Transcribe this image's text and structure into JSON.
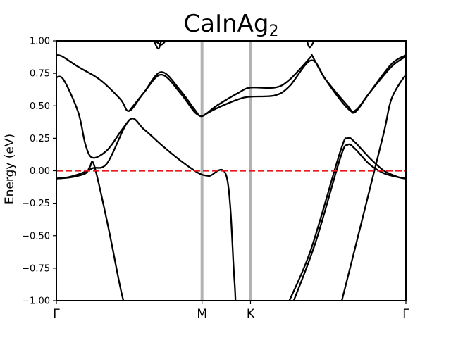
{
  "chart_data": {
    "type": "line",
    "title_main": "CaInAg",
    "title_sub": "2",
    "ylabel": "Energy (eV)",
    "ylim": [
      -1.0,
      1.0
    ],
    "yticks": [
      "1.00",
      "0.75",
      "0.50",
      "0.25",
      "0.00",
      "−0.25",
      "−0.50",
      "−0.75",
      "−1.00"
    ],
    "ytick_values": [
      1.0,
      0.75,
      0.5,
      0.25,
      0.0,
      -0.25,
      -0.5,
      -0.75,
      -1.0
    ],
    "kpath_labels": [
      "Γ",
      "M",
      "K",
      "Γ"
    ],
    "kpath_positions": [
      0,
      1,
      1.333,
      2.4
    ],
    "fermi_level": 0.0,
    "colors": {
      "bands": "#000000",
      "fermi": "#e8191c",
      "kline": "#b3b3b3"
    },
    "series": [
      {
        "x": [
          0,
          0.08,
          0.17,
          0.25,
          0.35,
          0.5,
          0.6,
          0.72,
          0.85,
          0.95,
          1.0,
          1.05,
          1.17,
          1.22,
          1.23
        ],
        "y": [
          -0.06,
          -0.05,
          -0.02,
          0.02,
          0.06,
          0.39,
          0.32,
          0.2,
          0.08,
          0.0,
          -0.03,
          -0.04,
          -0.05,
          -0.8,
          -1.0
        ]
      },
      {
        "x": [
          0,
          0.1,
          0.2,
          0.23,
          0.26,
          0.35,
          0.43,
          0.46
        ],
        "y": [
          -0.06,
          -0.05,
          -0.02,
          0.03,
          0.04,
          -0.4,
          -0.85,
          -1.0
        ]
      },
      {
        "x": [
          0,
          0.05,
          0.15,
          0.2,
          0.25,
          0.35,
          0.44,
          0.5
        ],
        "y": [
          0.72,
          0.7,
          0.45,
          0.2,
          0.1,
          0.16,
          0.3,
          0.39
        ]
      },
      {
        "x": [
          0,
          0.04,
          0.15,
          0.3,
          0.44,
          0.5,
          0.6,
          0.72,
          0.85,
          0.95,
          1.0
        ],
        "y": [
          0.89,
          0.88,
          0.8,
          0.7,
          0.55,
          0.46,
          0.6,
          0.74,
          0.6,
          0.45,
          0.42
        ]
      },
      {
        "x": [
          0.5,
          0.6,
          0.72,
          0.85,
          0.95,
          1.0,
          1.1,
          1.25,
          1.333,
          1.5,
          1.6,
          1.75
        ],
        "y": [
          0.46,
          0.6,
          0.76,
          0.62,
          0.47,
          0.42,
          0.5,
          0.6,
          0.64,
          0.64,
          0.7,
          0.88
        ]
      },
      {
        "x": [
          1.0,
          1.1,
          1.25,
          1.333,
          1.5,
          1.6,
          1.75,
          1.85,
          2.0,
          2.05,
          2.15,
          2.3,
          2.4
        ],
        "y": [
          0.42,
          0.48,
          0.55,
          0.57,
          0.58,
          0.65,
          0.85,
          0.7,
          0.5,
          0.45,
          0.6,
          0.82,
          0.89
        ]
      },
      {
        "x": [
          1.75,
          1.85,
          2.0,
          2.06,
          2.15,
          2.3,
          2.4
        ],
        "y": [
          0.9,
          0.7,
          0.48,
          0.47,
          0.6,
          0.8,
          0.88
        ]
      },
      {
        "x": [
          1.6,
          1.75,
          1.95,
          2.0,
          2.05,
          2.15,
          2.25,
          2.35,
          2.4
        ],
        "y": [
          -1.0,
          -0.6,
          0.15,
          0.25,
          0.22,
          0.1,
          0.0,
          -0.05,
          -0.06
        ]
      },
      {
        "x": [
          1.63,
          1.78,
          1.95,
          2.0,
          2.05,
          2.15,
          2.25,
          2.35,
          2.4
        ],
        "y": [
          -1.0,
          -0.55,
          0.1,
          0.2,
          0.17,
          0.05,
          -0.02,
          -0.05,
          -0.06
        ]
      },
      {
        "x": [
          1.96,
          2.05,
          2.15,
          2.25,
          2.3,
          2.38,
          2.4
        ],
        "y": [
          -1.0,
          -0.6,
          -0.15,
          0.3,
          0.55,
          0.71,
          0.72
        ]
      },
      {
        "x": [
          0.67,
          0.7,
          0.72
        ],
        "y": [
          1.0,
          0.94,
          1.0
        ]
      },
      {
        "x": [
          0.68,
          0.72,
          0.75
        ],
        "y": [
          1.0,
          0.97,
          1.0
        ]
      },
      {
        "x": [
          1.72,
          1.74,
          1.77
        ],
        "y": [
          1.0,
          0.95,
          1.0
        ]
      }
    ]
  }
}
